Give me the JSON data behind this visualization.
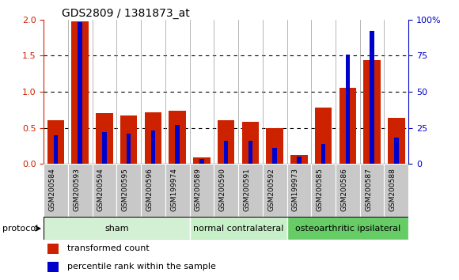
{
  "title": "GDS2809 / 1381873_at",
  "samples": [
    "GSM200584",
    "GSM200593",
    "GSM200594",
    "GSM200595",
    "GSM200596",
    "GSM199974",
    "GSM200589",
    "GSM200590",
    "GSM200591",
    "GSM200592",
    "GSM199973",
    "GSM200585",
    "GSM200586",
    "GSM200587",
    "GSM200588"
  ],
  "red_values": [
    0.6,
    1.98,
    0.7,
    0.67,
    0.71,
    0.74,
    0.09,
    0.6,
    0.58,
    0.5,
    0.12,
    0.78,
    1.05,
    1.44,
    0.64
  ],
  "blue_pct": [
    20,
    98,
    22,
    21,
    23,
    27,
    3.5,
    16,
    16,
    11,
    5,
    14,
    76,
    92,
    18
  ],
  "groups": [
    {
      "label": "sham",
      "start": 0,
      "end": 5,
      "color": "#d4f0d4"
    },
    {
      "label": "normal contralateral",
      "start": 6,
      "end": 9,
      "color": "#c8f0c8"
    },
    {
      "label": "osteoarthritic ipsilateral",
      "start": 10,
      "end": 14,
      "color": "#66cc66"
    }
  ],
  "ylim_left": [
    0,
    2
  ],
  "ylim_right": [
    0,
    100
  ],
  "yticks_left": [
    0,
    0.5,
    1.0,
    1.5,
    2.0
  ],
  "yticks_right": [
    0,
    25,
    50,
    75,
    100
  ],
  "ytick_labels_right": [
    "0",
    "25",
    "50",
    "75",
    "100%"
  ],
  "red_color": "#cc2200",
  "blue_color": "#0000cc",
  "bar_bg": "#c8c8c8",
  "protocol_label": "protocol",
  "legend_red": "transformed count",
  "legend_blue": "percentile rank within the sample"
}
